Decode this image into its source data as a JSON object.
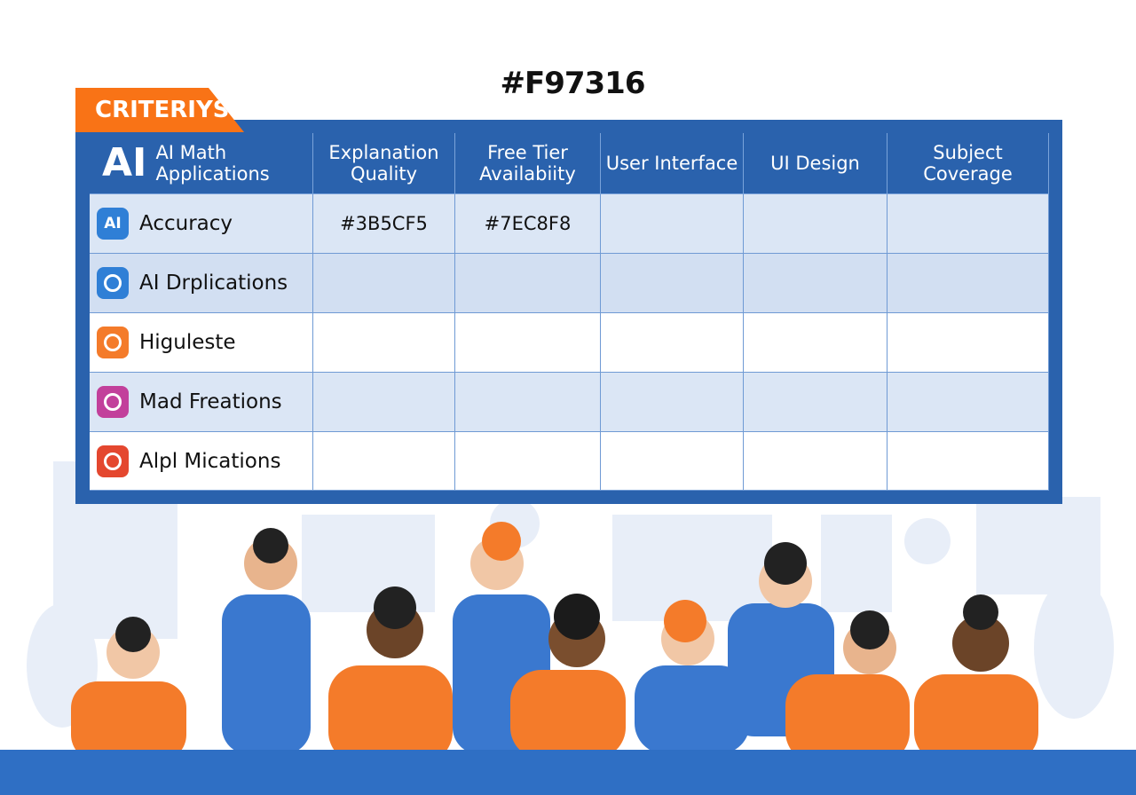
{
  "title": "#F97316",
  "tag": "CRITERIYS",
  "table": {
    "logo": "AI",
    "corner": "AI Math Applications",
    "columns": [
      "Explanation Quality",
      "Free Tier Availabiity",
      "User Interface",
      "UI Design",
      "Subject Coverage"
    ],
    "rows": [
      {
        "icon": "AI",
        "name": "Accuracy",
        "cells": [
          "#3B5CF5",
          "#7EC8F8"
        ]
      },
      {
        "name": "AI Drplications"
      },
      {
        "name": "Higuleste"
      },
      {
        "name": "Mad Freations"
      },
      {
        "name": "Alpl Mications"
      }
    ]
  }
}
